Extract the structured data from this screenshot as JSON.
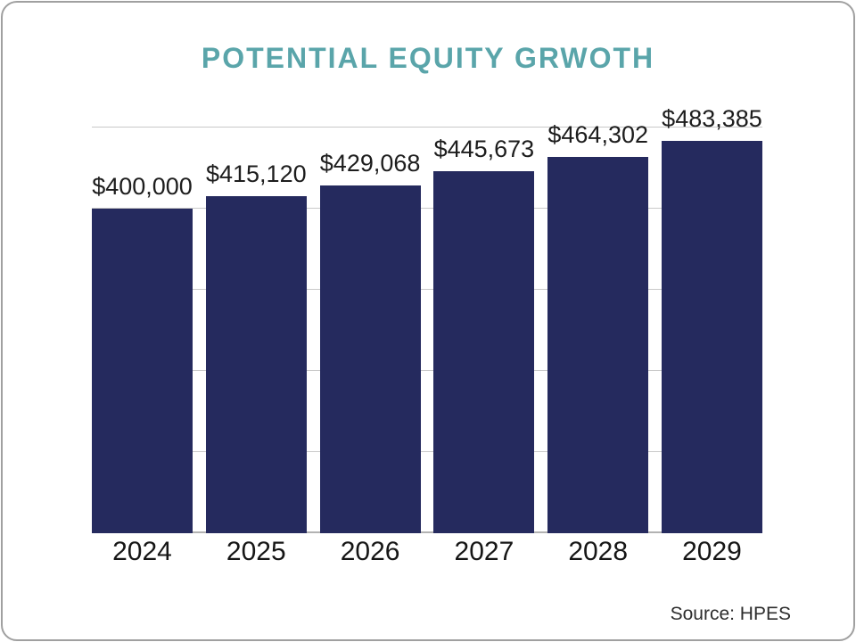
{
  "title": "POTENTIAL EQUITY GRWOTH",
  "source": "Source: HPES",
  "colors": {
    "bar": "#252a5e",
    "title": "#5aa5aa",
    "gridline": "#c9c9c9",
    "axis_line": "#b2b2b2",
    "value_label": "#1d1d1d",
    "year_label": "#161616",
    "source_text": "#2d2d2d",
    "card_border": "#a0a0a0",
    "background": "#ffffff"
  },
  "chart_data": {
    "type": "bar",
    "title": "POTENTIAL EQUITY GRWOTH",
    "categories": [
      "2024",
      "2025",
      "2026",
      "2027",
      "2028",
      "2029"
    ],
    "values": [
      400000,
      415120,
      429068,
      445673,
      464302,
      483385
    ],
    "value_labels": [
      "$400,000",
      "$415,120",
      "$429,068",
      "$445,673",
      "$464,302",
      "$483,385"
    ],
    "xlabel": "",
    "ylabel": "",
    "ylim": [
      0,
      500000
    ],
    "gridline_interval": 100000,
    "grid": true,
    "legend": "none",
    "annotation": "Source: HPES"
  }
}
